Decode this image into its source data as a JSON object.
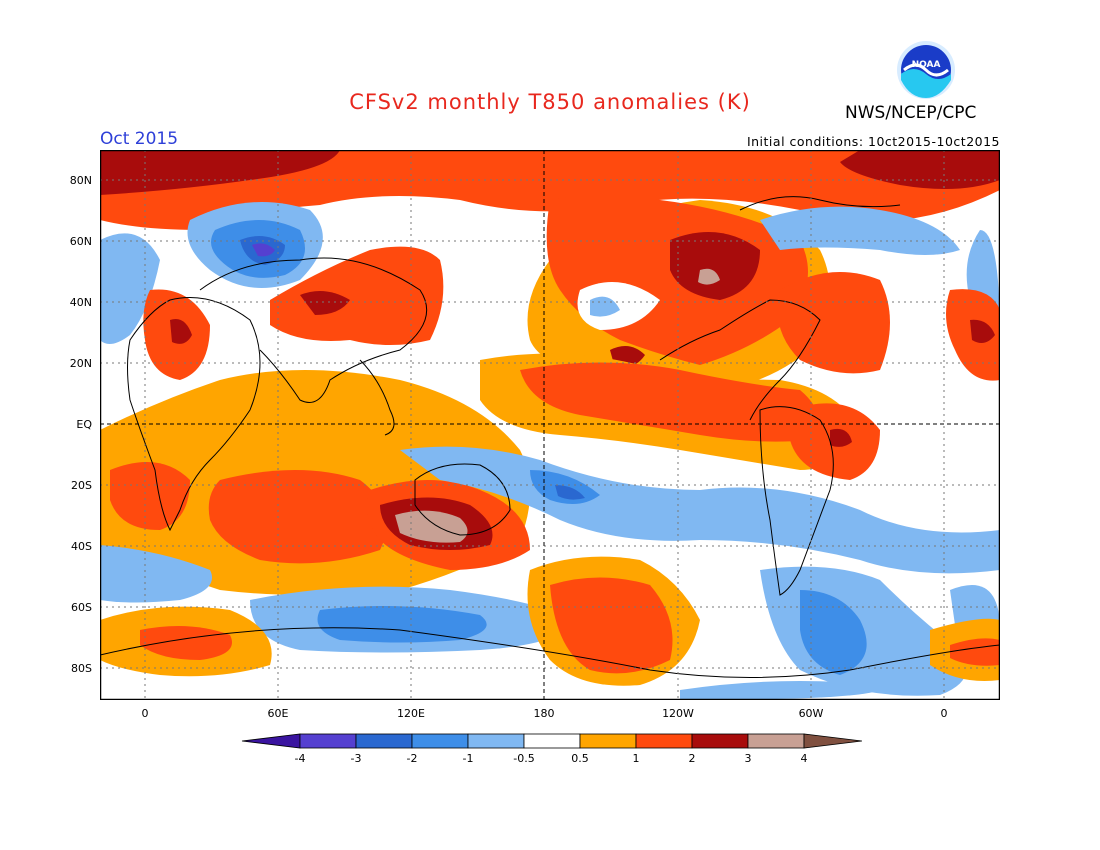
{
  "header": {
    "title": "CFSv2 monthly T850 anomalies (K)",
    "agency": "NWS/NCEP/CPC",
    "logo_text": "NOAA",
    "month": "Oct 2015",
    "initial_conditions": "Initial conditions: 10ct2015-10ct2015"
  },
  "axes": {
    "y_labels": [
      "80N",
      "60N",
      "40N",
      "20N",
      "EQ",
      "20S",
      "40S",
      "60S",
      "80S"
    ],
    "x_labels": [
      "0",
      "60E",
      "120E",
      "180",
      "120W",
      "60W",
      "0"
    ]
  },
  "legend": {
    "labels": [
      "-4",
      "-3",
      "-2",
      "-1",
      "-0.5",
      "0.5",
      "1",
      "2",
      "3",
      "4"
    ],
    "colors": [
      "#3a14a0",
      "#5540d0",
      "#2a68d0",
      "#3e8ee8",
      "#80b8f2",
      "#ffffff",
      "#ffa500",
      "#ff4a0e",
      "#a80c0c",
      "#c8a094",
      "#805040"
    ]
  }
}
